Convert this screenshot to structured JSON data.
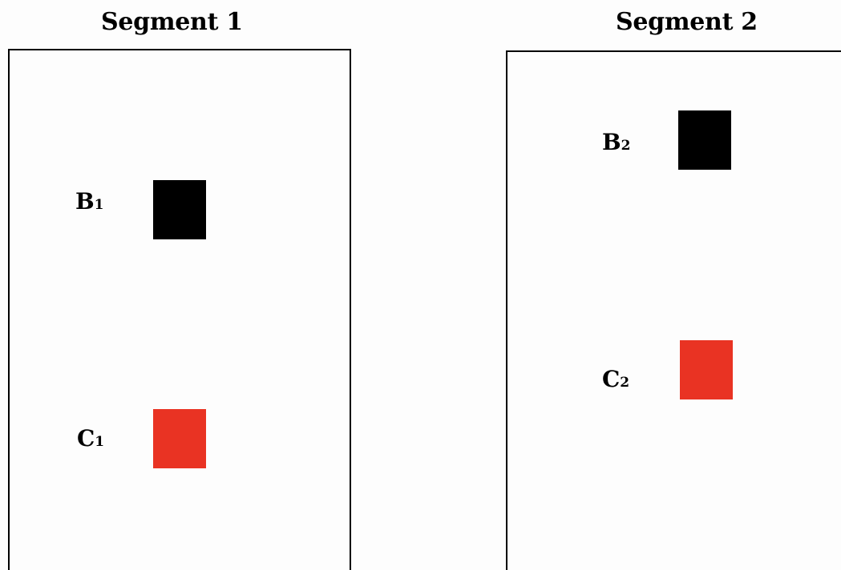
{
  "segments": [
    {
      "title": "Segment 1",
      "items": [
        {
          "letter": "B",
          "subscript": "1",
          "color": "#000000"
        },
        {
          "letter": "C",
          "subscript": "1",
          "color": "#e93323"
        }
      ]
    },
    {
      "title": "Segment 2",
      "items": [
        {
          "letter": "B",
          "subscript": "2",
          "color": "#000000"
        },
        {
          "letter": "C",
          "subscript": "2",
          "color": "#e93323"
        }
      ]
    }
  ]
}
